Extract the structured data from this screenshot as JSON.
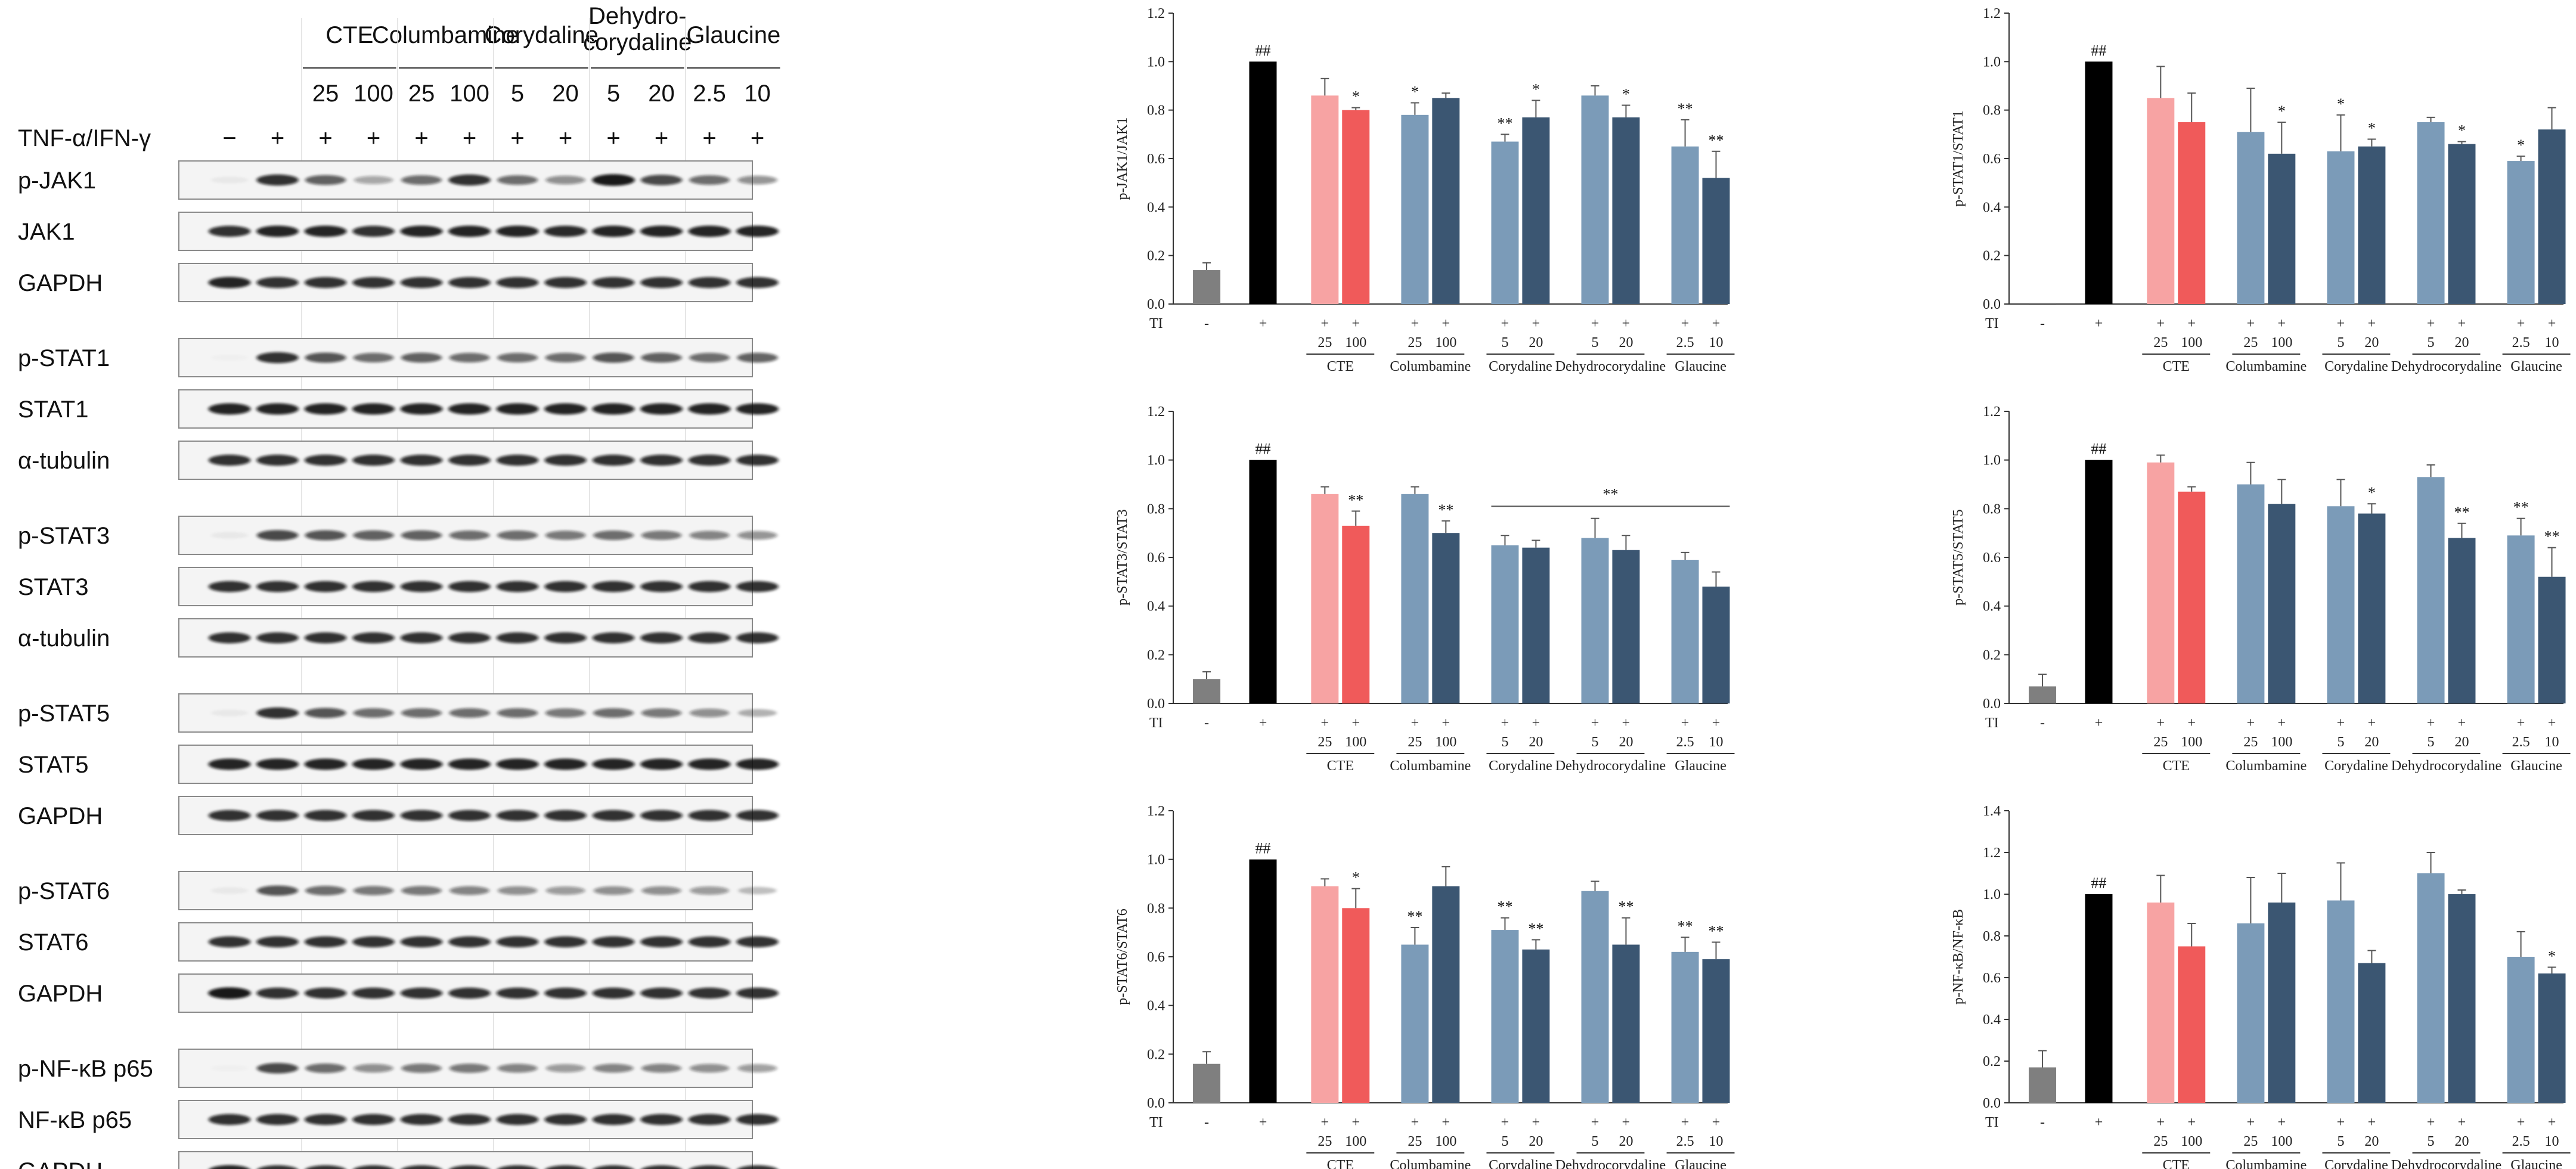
{
  "blot": {
    "treatment_label": "TNF-α/IFN-γ",
    "groups": [
      {
        "name": "CTE",
        "doses": [
          "25",
          "100"
        ]
      },
      {
        "name": "Columbamine",
        "doses": [
          "25",
          "100"
        ]
      },
      {
        "name": "Corydaline",
        "doses": [
          "5",
          "20"
        ]
      },
      {
        "name": "Dehydro-corydaline",
        "name_lines": [
          "Dehydro-",
          "corydaline"
        ],
        "doses": [
          "5",
          "20"
        ]
      },
      {
        "name": "Glaucine",
        "doses": [
          "2.5",
          "10"
        ]
      }
    ],
    "treatment_signs": [
      "−",
      "+",
      "+",
      "+",
      "+",
      "+",
      "+",
      "+",
      "+",
      "+",
      "+",
      "+"
    ],
    "rows": [
      {
        "label": "p-JAK1",
        "block": 0
      },
      {
        "label": "JAK1",
        "block": 0
      },
      {
        "label": "GAPDH",
        "block": 0
      },
      {
        "label": "p-STAT1",
        "block": 1
      },
      {
        "label": "STAT1",
        "block": 1
      },
      {
        "label": "α-tubulin",
        "block": 1
      },
      {
        "label": "p-STAT3",
        "block": 2
      },
      {
        "label": "STAT3",
        "block": 2
      },
      {
        "label": "α-tubulin",
        "block": 2
      },
      {
        "label": "p-STAT5",
        "block": 3
      },
      {
        "label": "STAT5",
        "block": 3
      },
      {
        "label": "GAPDH",
        "block": 3
      },
      {
        "label": "p-STAT6",
        "block": 4
      },
      {
        "label": "STAT6",
        "block": 4
      },
      {
        "label": "GAPDH",
        "block": 4
      },
      {
        "label": "p-NF-κB p65",
        "block": 5
      },
      {
        "label": "NF-κB p65",
        "block": 5
      },
      {
        "label": "GAPDH",
        "block": 5
      }
    ],
    "band_intensity": [
      [
        0.05,
        0.85,
        0.65,
        0.35,
        0.6,
        0.85,
        0.6,
        0.45,
        0.95,
        0.75,
        0.6,
        0.45
      ],
      [
        0.85,
        0.9,
        0.9,
        0.85,
        0.9,
        0.9,
        0.9,
        0.88,
        0.9,
        0.9,
        0.9,
        0.9
      ],
      [
        0.9,
        0.85,
        0.85,
        0.85,
        0.85,
        0.85,
        0.85,
        0.85,
        0.85,
        0.85,
        0.85,
        0.85
      ],
      [
        0.02,
        0.85,
        0.7,
        0.6,
        0.65,
        0.6,
        0.6,
        0.6,
        0.7,
        0.65,
        0.6,
        0.65
      ],
      [
        0.9,
        0.9,
        0.9,
        0.9,
        0.9,
        0.9,
        0.9,
        0.9,
        0.9,
        0.9,
        0.9,
        0.9
      ],
      [
        0.85,
        0.85,
        0.85,
        0.85,
        0.85,
        0.85,
        0.85,
        0.85,
        0.85,
        0.85,
        0.85,
        0.85
      ],
      [
        0.05,
        0.75,
        0.7,
        0.65,
        0.65,
        0.6,
        0.6,
        0.55,
        0.6,
        0.55,
        0.5,
        0.45
      ],
      [
        0.85,
        0.85,
        0.85,
        0.85,
        0.85,
        0.85,
        0.85,
        0.85,
        0.85,
        0.85,
        0.85,
        0.85
      ],
      [
        0.85,
        0.85,
        0.85,
        0.85,
        0.85,
        0.85,
        0.85,
        0.85,
        0.85,
        0.85,
        0.85,
        0.85
      ],
      [
        0.05,
        0.85,
        0.7,
        0.6,
        0.6,
        0.6,
        0.6,
        0.55,
        0.6,
        0.55,
        0.45,
        0.3
      ],
      [
        0.9,
        0.9,
        0.9,
        0.9,
        0.9,
        0.9,
        0.9,
        0.9,
        0.9,
        0.9,
        0.9,
        0.9
      ],
      [
        0.85,
        0.85,
        0.85,
        0.85,
        0.85,
        0.85,
        0.85,
        0.85,
        0.85,
        0.85,
        0.85,
        0.85
      ],
      [
        0.05,
        0.7,
        0.6,
        0.55,
        0.55,
        0.5,
        0.45,
        0.4,
        0.45,
        0.45,
        0.4,
        0.25
      ],
      [
        0.85,
        0.85,
        0.85,
        0.85,
        0.85,
        0.85,
        0.85,
        0.85,
        0.85,
        0.85,
        0.85,
        0.85
      ],
      [
        0.95,
        0.85,
        0.85,
        0.85,
        0.85,
        0.85,
        0.85,
        0.85,
        0.85,
        0.85,
        0.85,
        0.85
      ],
      [
        0.02,
        0.75,
        0.6,
        0.45,
        0.55,
        0.55,
        0.5,
        0.4,
        0.5,
        0.5,
        0.45,
        0.4
      ],
      [
        0.85,
        0.85,
        0.85,
        0.85,
        0.85,
        0.85,
        0.85,
        0.85,
        0.85,
        0.85,
        0.85,
        0.85
      ],
      [
        0.9,
        0.85,
        0.85,
        0.85,
        0.85,
        0.85,
        0.85,
        0.85,
        0.85,
        0.85,
        0.85,
        0.85
      ]
    ]
  },
  "colors": {
    "control": "#7f7f7f",
    "stim": "#000000",
    "cte_25": "#f7a3a3",
    "cte_100": "#f05a5a",
    "light": "#7b9bb8",
    "dark": "#3b5672"
  },
  "chart_data": [
    {
      "type": "bar",
      "ylabel": "p-JAK1/JAK1",
      "ylim": [
        0,
        1.2
      ],
      "yticks": [
        "0.0",
        "0.2",
        "0.4",
        "0.6",
        "0.8",
        "1.0",
        "1.2"
      ],
      "ti_label": "TI",
      "bars": [
        {
          "sign": "-",
          "dose": "",
          "color": "control",
          "value": 0.14,
          "err": 0.03,
          "sig": ""
        },
        {
          "sign": "+",
          "dose": "",
          "color": "stim",
          "value": 1.0,
          "err": 0.0,
          "sig": "##"
        },
        {
          "sign": "+",
          "dose": "25",
          "color": "cte_25",
          "value": 0.86,
          "err": 0.07,
          "sig": ""
        },
        {
          "sign": "+",
          "dose": "100",
          "color": "cte_100",
          "value": 0.8,
          "err": 0.01,
          "sig": "*"
        },
        {
          "sign": "+",
          "dose": "25",
          "color": "light",
          "value": 0.78,
          "err": 0.05,
          "sig": "*"
        },
        {
          "sign": "+",
          "dose": "100",
          "color": "dark",
          "value": 0.85,
          "err": 0.02,
          "sig": ""
        },
        {
          "sign": "+",
          "dose": "5",
          "color": "light",
          "value": 0.67,
          "err": 0.03,
          "sig": "**"
        },
        {
          "sign": "+",
          "dose": "20",
          "color": "dark",
          "value": 0.77,
          "err": 0.07,
          "sig": "*"
        },
        {
          "sign": "+",
          "dose": "5",
          "color": "light",
          "value": 0.86,
          "err": 0.04,
          "sig": ""
        },
        {
          "sign": "+",
          "dose": "20",
          "color": "dark",
          "value": 0.77,
          "err": 0.05,
          "sig": "*"
        },
        {
          "sign": "+",
          "dose": "2.5",
          "color": "light",
          "value": 0.65,
          "err": 0.11,
          "sig": "**"
        },
        {
          "sign": "+",
          "dose": "10",
          "color": "dark",
          "value": 0.52,
          "err": 0.11,
          "sig": "**"
        }
      ],
      "groups": [
        "CTE",
        "Columbamine",
        "Corydaline",
        "Dehydrocorydaline",
        "Glaucine"
      ]
    },
    {
      "type": "bar",
      "ylabel": "p-STAT1/STAT1",
      "ylim": [
        0,
        1.2
      ],
      "yticks": [
        "0.0",
        "0.2",
        "0.4",
        "0.6",
        "0.8",
        "1.0",
        "1.2"
      ],
      "ti_label": "TI",
      "bars": [
        {
          "sign": "-",
          "dose": "",
          "color": "control",
          "value": 0.005,
          "err": 0.0,
          "sig": ""
        },
        {
          "sign": "+",
          "dose": "",
          "color": "stim",
          "value": 1.0,
          "err": 0.0,
          "sig": "##"
        },
        {
          "sign": "+",
          "dose": "25",
          "color": "cte_25",
          "value": 0.85,
          "err": 0.13,
          "sig": ""
        },
        {
          "sign": "+",
          "dose": "100",
          "color": "cte_100",
          "value": 0.75,
          "err": 0.12,
          "sig": ""
        },
        {
          "sign": "+",
          "dose": "25",
          "color": "light",
          "value": 0.71,
          "err": 0.18,
          "sig": ""
        },
        {
          "sign": "+",
          "dose": "100",
          "color": "dark",
          "value": 0.62,
          "err": 0.13,
          "sig": "*"
        },
        {
          "sign": "+",
          "dose": "5",
          "color": "light",
          "value": 0.63,
          "err": 0.15,
          "sig": "*"
        },
        {
          "sign": "+",
          "dose": "20",
          "color": "dark",
          "value": 0.65,
          "err": 0.03,
          "sig": "*"
        },
        {
          "sign": "+",
          "dose": "5",
          "color": "light",
          "value": 0.75,
          "err": 0.02,
          "sig": ""
        },
        {
          "sign": "+",
          "dose": "20",
          "color": "dark",
          "value": 0.66,
          "err": 0.01,
          "sig": "*"
        },
        {
          "sign": "+",
          "dose": "2.5",
          "color": "light",
          "value": 0.59,
          "err": 0.02,
          "sig": "*"
        },
        {
          "sign": "+",
          "dose": "10",
          "color": "dark",
          "value": 0.72,
          "err": 0.09,
          "sig": ""
        }
      ],
      "groups": [
        "CTE",
        "Columbamine",
        "Corydaline",
        "Dehydrocorydaline",
        "Glaucine"
      ]
    },
    {
      "type": "bar",
      "ylabel": "p-STAT3/STAT3",
      "ylim": [
        0,
        1.2
      ],
      "yticks": [
        "0.0",
        "0.2",
        "0.4",
        "0.6",
        "0.8",
        "1.0",
        "1.2"
      ],
      "ti_label": "TI",
      "bracket": {
        "from_bar": 6,
        "to_bar": 11,
        "value": 0.81,
        "label": "**"
      },
      "bars": [
        {
          "sign": "-",
          "dose": "",
          "color": "control",
          "value": 0.1,
          "err": 0.03,
          "sig": ""
        },
        {
          "sign": "+",
          "dose": "",
          "color": "stim",
          "value": 1.0,
          "err": 0.0,
          "sig": "##"
        },
        {
          "sign": "+",
          "dose": "25",
          "color": "cte_25",
          "value": 0.86,
          "err": 0.03,
          "sig": ""
        },
        {
          "sign": "+",
          "dose": "100",
          "color": "cte_100",
          "value": 0.73,
          "err": 0.06,
          "sig": "**"
        },
        {
          "sign": "+",
          "dose": "25",
          "color": "light",
          "value": 0.86,
          "err": 0.03,
          "sig": ""
        },
        {
          "sign": "+",
          "dose": "100",
          "color": "dark",
          "value": 0.7,
          "err": 0.05,
          "sig": "**"
        },
        {
          "sign": "+",
          "dose": "5",
          "color": "light",
          "value": 0.65,
          "err": 0.04,
          "sig": ""
        },
        {
          "sign": "+",
          "dose": "20",
          "color": "dark",
          "value": 0.64,
          "err": 0.03,
          "sig": ""
        },
        {
          "sign": "+",
          "dose": "5",
          "color": "light",
          "value": 0.68,
          "err": 0.08,
          "sig": ""
        },
        {
          "sign": "+",
          "dose": "20",
          "color": "dark",
          "value": 0.63,
          "err": 0.06,
          "sig": ""
        },
        {
          "sign": "+",
          "dose": "2.5",
          "color": "light",
          "value": 0.59,
          "err": 0.03,
          "sig": ""
        },
        {
          "sign": "+",
          "dose": "10",
          "color": "dark",
          "value": 0.48,
          "err": 0.06,
          "sig": ""
        }
      ],
      "groups": [
        "CTE",
        "Columbamine",
        "Corydaline",
        "Dehydrocorydaline",
        "Glaucine"
      ]
    },
    {
      "type": "bar",
      "ylabel": "p-STAT5/STAT5",
      "ylim": [
        0,
        1.2
      ],
      "yticks": [
        "0.0",
        "0.2",
        "0.4",
        "0.6",
        "0.8",
        "1.0",
        "1.2"
      ],
      "ti_label": "TI",
      "bars": [
        {
          "sign": "-",
          "dose": "",
          "color": "control",
          "value": 0.07,
          "err": 0.05,
          "sig": ""
        },
        {
          "sign": "+",
          "dose": "",
          "color": "stim",
          "value": 1.0,
          "err": 0.0,
          "sig": "##"
        },
        {
          "sign": "+",
          "dose": "25",
          "color": "cte_25",
          "value": 0.99,
          "err": 0.03,
          "sig": ""
        },
        {
          "sign": "+",
          "dose": "100",
          "color": "cte_100",
          "value": 0.87,
          "err": 0.02,
          "sig": ""
        },
        {
          "sign": "+",
          "dose": "25",
          "color": "light",
          "value": 0.9,
          "err": 0.09,
          "sig": ""
        },
        {
          "sign": "+",
          "dose": "100",
          "color": "dark",
          "value": 0.82,
          "err": 0.1,
          "sig": ""
        },
        {
          "sign": "+",
          "dose": "5",
          "color": "light",
          "value": 0.81,
          "err": 0.11,
          "sig": ""
        },
        {
          "sign": "+",
          "dose": "20",
          "color": "dark",
          "value": 0.78,
          "err": 0.04,
          "sig": "*"
        },
        {
          "sign": "+",
          "dose": "5",
          "color": "light",
          "value": 0.93,
          "err": 0.05,
          "sig": ""
        },
        {
          "sign": "+",
          "dose": "20",
          "color": "dark",
          "value": 0.68,
          "err": 0.06,
          "sig": "**"
        },
        {
          "sign": "+",
          "dose": "2.5",
          "color": "light",
          "value": 0.69,
          "err": 0.07,
          "sig": "**"
        },
        {
          "sign": "+",
          "dose": "10",
          "color": "dark",
          "value": 0.52,
          "err": 0.12,
          "sig": "**"
        }
      ],
      "groups": [
        "CTE",
        "Columbamine",
        "Corydaline",
        "Dehydrocorydaline",
        "Glaucine"
      ]
    },
    {
      "type": "bar",
      "ylabel": "p-STAT6/STAT6",
      "ylim": [
        0,
        1.2
      ],
      "yticks": [
        "0.0",
        "0.2",
        "0.4",
        "0.6",
        "0.8",
        "1.0",
        "1.2"
      ],
      "ti_label": "TI",
      "bars": [
        {
          "sign": "-",
          "dose": "",
          "color": "control",
          "value": 0.16,
          "err": 0.05,
          "sig": ""
        },
        {
          "sign": "+",
          "dose": "",
          "color": "stim",
          "value": 1.0,
          "err": 0.0,
          "sig": "##"
        },
        {
          "sign": "+",
          "dose": "25",
          "color": "cte_25",
          "value": 0.89,
          "err": 0.03,
          "sig": ""
        },
        {
          "sign": "+",
          "dose": "100",
          "color": "cte_100",
          "value": 0.8,
          "err": 0.08,
          "sig": "*"
        },
        {
          "sign": "+",
          "dose": "25",
          "color": "light",
          "value": 0.65,
          "err": 0.07,
          "sig": "**"
        },
        {
          "sign": "+",
          "dose": "100",
          "color": "dark",
          "value": 0.89,
          "err": 0.08,
          "sig": ""
        },
        {
          "sign": "+",
          "dose": "5",
          "color": "light",
          "value": 0.71,
          "err": 0.05,
          "sig": "**"
        },
        {
          "sign": "+",
          "dose": "20",
          "color": "dark",
          "value": 0.63,
          "err": 0.04,
          "sig": "**"
        },
        {
          "sign": "+",
          "dose": "5",
          "color": "light",
          "value": 0.87,
          "err": 0.04,
          "sig": ""
        },
        {
          "sign": "+",
          "dose": "20",
          "color": "dark",
          "value": 0.65,
          "err": 0.11,
          "sig": "**"
        },
        {
          "sign": "+",
          "dose": "2.5",
          "color": "light",
          "value": 0.62,
          "err": 0.06,
          "sig": "**"
        },
        {
          "sign": "+",
          "dose": "10",
          "color": "dark",
          "value": 0.59,
          "err": 0.07,
          "sig": "**"
        }
      ],
      "groups": [
        "CTE",
        "Columbamine",
        "Corydaline",
        "Dehydrocorydaline",
        "Glaucine"
      ]
    },
    {
      "type": "bar",
      "ylabel": "p-NF-κB/NF-κB",
      "ylim": [
        0,
        1.4
      ],
      "yticks": [
        "0.0",
        "0.2",
        "0.4",
        "0.6",
        "0.8",
        "1.0",
        "1.2",
        "1.4"
      ],
      "ti_label": "TI",
      "bars": [
        {
          "sign": "-",
          "dose": "",
          "color": "control",
          "value": 0.17,
          "err": 0.08,
          "sig": ""
        },
        {
          "sign": "+",
          "dose": "",
          "color": "stim",
          "value": 1.0,
          "err": 0.0,
          "sig": "##"
        },
        {
          "sign": "+",
          "dose": "25",
          "color": "cte_25",
          "value": 0.96,
          "err": 0.13,
          "sig": ""
        },
        {
          "sign": "+",
          "dose": "100",
          "color": "cte_100",
          "value": 0.75,
          "err": 0.11,
          "sig": ""
        },
        {
          "sign": "+",
          "dose": "25",
          "color": "light",
          "value": 0.86,
          "err": 0.22,
          "sig": ""
        },
        {
          "sign": "+",
          "dose": "100",
          "color": "dark",
          "value": 0.96,
          "err": 0.14,
          "sig": ""
        },
        {
          "sign": "+",
          "dose": "5",
          "color": "light",
          "value": 0.97,
          "err": 0.18,
          "sig": ""
        },
        {
          "sign": "+",
          "dose": "20",
          "color": "dark",
          "value": 0.67,
          "err": 0.06,
          "sig": ""
        },
        {
          "sign": "+",
          "dose": "5",
          "color": "light",
          "value": 1.1,
          "err": 0.1,
          "sig": ""
        },
        {
          "sign": "+",
          "dose": "20",
          "color": "dark",
          "value": 1.0,
          "err": 0.02,
          "sig": ""
        },
        {
          "sign": "+",
          "dose": "2.5",
          "color": "light",
          "value": 0.7,
          "err": 0.12,
          "sig": ""
        },
        {
          "sign": "+",
          "dose": "10",
          "color": "dark",
          "value": 0.62,
          "err": 0.03,
          "sig": "*"
        }
      ],
      "groups": [
        "CTE",
        "Columbamine",
        "Corydaline",
        "Dehydrocorydaline",
        "Glaucine"
      ]
    }
  ]
}
